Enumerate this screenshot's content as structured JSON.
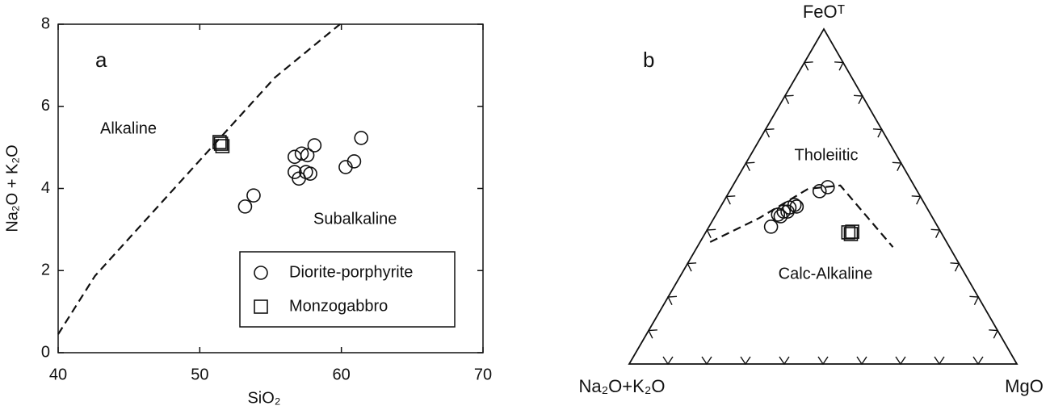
{
  "chart_data": [
    {
      "type": "scatter",
      "label": "a",
      "xlabel": "SiO₂",
      "ylabel": "Na₂O + K₂O",
      "xlim": [
        40,
        70
      ],
      "ylim": [
        0,
        8
      ],
      "xticks": [
        40,
        50,
        60,
        70
      ],
      "yticks": [
        0,
        2,
        4,
        6,
        8
      ],
      "series": [
        {
          "name": "Diorite-porphyrite",
          "marker": "circle",
          "x": [
            53.2,
            53.8,
            56.7,
            57.2,
            57.6,
            58.1,
            56.7,
            57.0,
            57.5,
            57.8,
            60.3,
            60.9,
            61.4
          ],
          "y": [
            3.56,
            3.83,
            4.77,
            4.85,
            4.81,
            5.05,
            4.4,
            4.24,
            4.4,
            4.36,
            4.52,
            4.66,
            5.23
          ]
        },
        {
          "name": "Monzogabbro",
          "marker": "square",
          "x": [
            51.5,
            51.6,
            51.4
          ],
          "y": [
            5.09,
            5.03,
            5.13
          ]
        }
      ],
      "boundary": {
        "x": [
          40,
          42.6,
          55.3,
          59.9
        ],
        "y": [
          0.45,
          1.87,
          6.7,
          8
        ]
      },
      "annotations": [
        "Alkaline",
        "Subalkaline"
      ]
    },
    {
      "type": "ternary",
      "label": "b",
      "components": [
        "Na₂O+K₂O",
        "FeOᵀ",
        "MgO"
      ],
      "series": [
        {
          "marker": "circle",
          "values": [
            [
              43,
              41,
              16
            ],
            [
              39.4,
              44.6,
              16
            ],
            [
              39,
              44.1,
              16.9
            ],
            [
              37.5,
              45.5,
              17
            ],
            [
              36.5,
              45.5,
              18
            ],
            [
              35.4,
              46.7,
              17.9
            ],
            [
              33.7,
              47.5,
              18.8
            ],
            [
              33.4,
              47,
              19.6
            ],
            [
              25.2,
              51.6,
              23.2
            ],
            [
              22.5,
              52.8,
              24.7
            ]
          ]
        },
        {
          "marker": "square",
          "values": [
            [
              23.9,
              39.3,
              36.8
            ],
            [
              23.5,
              38.8,
              37.7
            ],
            [
              22.8,
              39.5,
              37.7
            ]
          ]
        }
      ],
      "boundary": [
        [
          61,
          36.4,
          2.6
        ],
        [
          44.7,
          43.6,
          11.7
        ],
        [
          27.8,
          52.3,
          19.9
        ],
        [
          19,
          53.3,
          27.7
        ],
        [
          14.6,
          34.9,
          50.5
        ]
      ],
      "annotations": [
        "Tholeiitic",
        "Calc-Alkaline"
      ]
    }
  ]
}
